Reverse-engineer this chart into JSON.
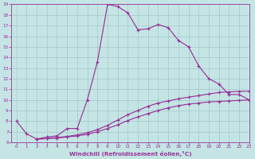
{
  "background_color": "#c5e5e5",
  "grid_color": "#a0c8c8",
  "line_color": "#993399",
  "xlabel": "Windchill (Refroidissement éolien,°C)",
  "xlim": [
    -0.5,
    23
  ],
  "ylim": [
    6,
    19
  ],
  "yticks": [
    6,
    7,
    8,
    9,
    10,
    11,
    12,
    13,
    14,
    15,
    16,
    17,
    18,
    19
  ],
  "xticks": [
    0,
    1,
    2,
    3,
    4,
    5,
    6,
    7,
    8,
    9,
    10,
    11,
    12,
    13,
    14,
    15,
    16,
    17,
    18,
    19,
    20,
    21,
    22,
    23
  ],
  "curve1_x": [
    0,
    1,
    2,
    3,
    4,
    5,
    6,
    7,
    8,
    9,
    10,
    11,
    12,
    13,
    14,
    15,
    16,
    17,
    18,
    19,
    20,
    21,
    22,
    23
  ],
  "curve1_y": [
    8.0,
    6.8,
    6.3,
    6.5,
    6.6,
    7.3,
    7.3,
    10.0,
    13.6,
    19.0,
    18.8,
    18.2,
    16.6,
    16.7,
    17.1,
    16.8,
    15.6,
    15.0,
    13.2,
    12.0,
    11.5,
    10.5,
    10.5,
    10.0
  ],
  "curve2_x": [
    2,
    3,
    4,
    5,
    6,
    7,
    8,
    9,
    10,
    11,
    12,
    13,
    14,
    15,
    16,
    17,
    18,
    19,
    20,
    21,
    22,
    23
  ],
  "curve2_y": [
    6.3,
    6.35,
    6.4,
    6.5,
    6.6,
    6.75,
    7.0,
    7.3,
    7.65,
    8.05,
    8.4,
    8.7,
    9.0,
    9.25,
    9.45,
    9.6,
    9.7,
    9.8,
    9.85,
    9.9,
    9.95,
    10.0
  ],
  "curve3_x": [
    2,
    3,
    4,
    5,
    6,
    7,
    8,
    9,
    10,
    11,
    12,
    13,
    14,
    15,
    16,
    17,
    18,
    19,
    20,
    21,
    22,
    23
  ],
  "curve3_y": [
    6.3,
    6.35,
    6.45,
    6.55,
    6.7,
    6.9,
    7.2,
    7.6,
    8.1,
    8.6,
    9.0,
    9.4,
    9.7,
    9.9,
    10.1,
    10.25,
    10.4,
    10.55,
    10.7,
    10.75,
    10.8,
    10.82
  ]
}
